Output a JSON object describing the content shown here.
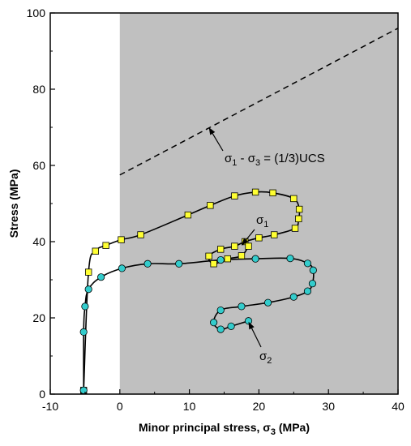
{
  "chart_data": {
    "type": "scatter",
    "title": "",
    "xlabel": {
      "main": "Minor principal stress, σ",
      "sub": "3",
      "unit": " (MPa)"
    },
    "ylabel": "Stress (MPa)",
    "xlim": [
      -10,
      40
    ],
    "ylim": [
      0,
      100
    ],
    "xticks": [
      -10,
      0,
      10,
      20,
      30,
      40
    ],
    "yticks": [
      0,
      20,
      40,
      60,
      80,
      100
    ],
    "grid": false,
    "shaded_region": {
      "x_from": 0,
      "x_to": 40,
      "color": "#c0c0c0"
    },
    "series": [
      {
        "name": "σ1",
        "marker": "square",
        "color": "#ffff33",
        "x": [
          -5.2,
          -4.5,
          -3.5,
          -2.0,
          0.2,
          3.0,
          9.8,
          13.0,
          16.5,
          19.5,
          22.0,
          25.0,
          25.8,
          25.7,
          25.2,
          22.2,
          20.0,
          18.0,
          16.5,
          14.5,
          12.8,
          13.5,
          15.5,
          17.5,
          18.5
        ],
        "y": [
          1.0,
          32.0,
          37.5,
          39.0,
          40.5,
          41.8,
          47.0,
          49.5,
          52.0,
          53.0,
          52.8,
          51.3,
          48.5,
          46.0,
          43.5,
          41.8,
          41.0,
          40.0,
          38.8,
          38.0,
          36.2,
          34.2,
          35.5,
          36.3,
          38.8
        ]
      },
      {
        "name": "σ2",
        "marker": "circle",
        "color": "#33cccc",
        "x": [
          -5.2,
          -5.2,
          -5.0,
          -4.5,
          -2.7,
          0.3,
          4.0,
          8.5,
          14.5,
          19.5,
          24.5,
          27.0,
          27.8,
          27.7,
          27.0,
          25.0,
          21.3,
          17.5,
          14.5,
          13.5,
          14.5,
          16.0,
          18.5
        ],
        "y": [
          1.0,
          16.3,
          23.0,
          27.5,
          30.7,
          33.0,
          34.2,
          34.2,
          35.2,
          35.5,
          35.6,
          34.3,
          32.5,
          29.0,
          27.0,
          25.5,
          24.0,
          23.0,
          22.0,
          18.8,
          17.0,
          17.8,
          19.2
        ]
      }
    ],
    "reference_line": {
      "style": "dashed",
      "x": [
        0,
        40
      ],
      "y": [
        57.5,
        96
      ]
    },
    "annotations": [
      {
        "id": "ucs",
        "text_parts": [
          "σ",
          "1",
          " - σ",
          "3",
          " = (1/3)UCS"
        ],
        "arrow_to": [
          12.8,
          70.0
        ]
      },
      {
        "id": "s1",
        "text_parts": [
          "σ",
          "1"
        ],
        "arrow_to": [
          17.5,
          39.0
        ]
      },
      {
        "id": "s2",
        "text_parts": [
          "σ",
          "2"
        ],
        "arrow_to": [
          18.5,
          19.0
        ]
      }
    ]
  }
}
